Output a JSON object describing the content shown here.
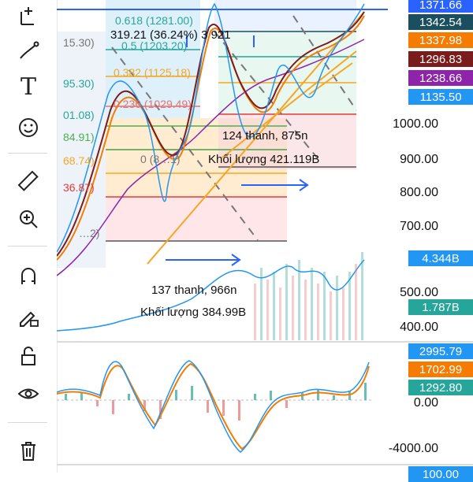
{
  "toolbar": {
    "tools": [
      {
        "name": "crosshair-tool",
        "icon": "cursor-cross-icon"
      },
      {
        "name": "trend-line-tool",
        "icon": "line-tool-icon"
      },
      {
        "name": "brush-tool",
        "icon": "brush-icon"
      },
      {
        "name": "text-tool",
        "icon": "text-icon"
      },
      {
        "name": "emoji-tool",
        "icon": "smiley-icon"
      },
      {
        "name": "measure-tool",
        "icon": "ruler-icon"
      },
      {
        "name": "zoom-tool",
        "icon": "zoom-in-icon"
      },
      {
        "name": "magnet-tool",
        "icon": "magnet-icon"
      },
      {
        "name": "lock-drawing-tool",
        "icon": "pencil-lock-icon"
      },
      {
        "name": "unlock-tool",
        "icon": "unlock-icon"
      },
      {
        "name": "visibility-tool",
        "icon": "eye-icon"
      },
      {
        "name": "delete-tool",
        "icon": "trash-icon"
      }
    ],
    "text_glyph": "T"
  },
  "price_scale": {
    "ticks": [
      "1000.00",
      "900.00",
      "800.00",
      "700.00",
      "500.00",
      "400.00"
    ],
    "tags": [
      {
        "label": "1371.66",
        "color": "#2962ff"
      },
      {
        "label": "1342.54",
        "color": "#1b4f5f"
      },
      {
        "label": "1337.98",
        "color": "#f57c00"
      },
      {
        "label": "1296.83",
        "color": "#7b1c1c"
      },
      {
        "label": "1238.66",
        "color": "#8e24aa"
      },
      {
        "label": "1135.50",
        "color": "#2196f3"
      },
      {
        "label": "4.344B",
        "color": "#2196f3"
      },
      {
        "label": "1.787B",
        "color": "#26a69a"
      }
    ]
  },
  "oscillator_scale": {
    "ticks": [
      "0.00",
      "-4000.00"
    ],
    "tags": [
      {
        "label": "2995.79",
        "color": "#2196f3"
      },
      {
        "label": "1702.99",
        "color": "#f57c00"
      },
      {
        "label": "1292.80",
        "color": "#26a69a"
      }
    ],
    "bottom_tag": {
      "label": "100.00",
      "color": "#2196f3"
    }
  },
  "fibonacci_labels": [
    {
      "text": "0.618 (1281.00)",
      "color": "#26a69a"
    },
    {
      "text": "0.5 (1203.20)",
      "color": "#26a69a"
    },
    {
      "text": "0.382 (1125.18)",
      "color": "#f5a623"
    },
    {
      "text": "0.236 (1029.49)",
      "color": "#e57373"
    },
    {
      "text": "15.30)",
      "color": "#777777"
    },
    {
      "text": "95.30)",
      "color": "#26a69a"
    },
    {
      "text": "01.08)",
      "color": "#26a69a"
    },
    {
      "text": "84.91)",
      "color": "#4caf50"
    },
    {
      "text": "68.74)",
      "color": "#f5a623"
    },
    {
      "text": "36.87)",
      "color": "#e53935"
    },
    {
      "text": "0 (8…1)",
      "color": "#777777"
    },
    {
      "text": "…2)",
      "color": "#777777"
    }
  ],
  "measure_top": {
    "text": "319.21 (36.24%) 3 921"
  },
  "measure_right": {
    "bars": "124 thanh, 875n",
    "volume": "Khối lượng 421.119B"
  },
  "measure_bottom": {
    "bars": "137 thanh, 966n",
    "volume": "Khối lượng 384.99B"
  }
}
